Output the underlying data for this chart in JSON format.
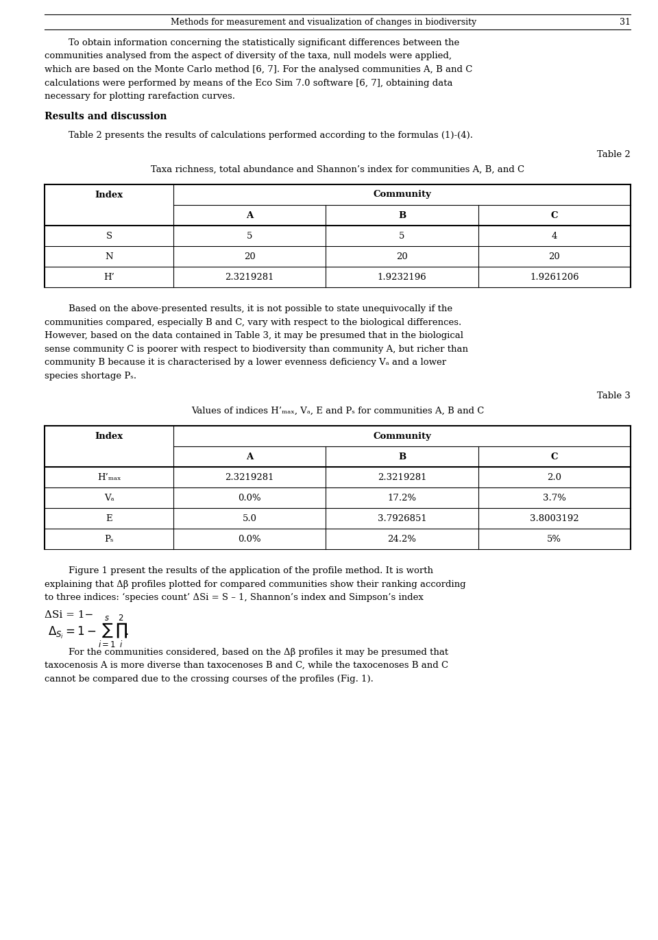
{
  "page_width": 9.6,
  "page_height": 13.71,
  "bg_color": "#ffffff",
  "header_text": "Methods for measurement and visualization of changes in biodiversity",
  "page_num": "31",
  "para1": "To obtain information concerning the statistically significant differences between the communities analysed from the aspect of diversity of the taxa, null models were applied, which are based on the Monte Carlo method [6, 7]. For the analysed communities A, B and C calculations were performed by means of the Eco Sim 7.0 software [6, 7], obtaining data necessary for plotting rarefaction curves.",
  "section_heading": "Results and discussion",
  "para2": "Table 2 presents the results of calculations performed according to the formulas (1)-(4).",
  "table2_label": "Table 2",
  "table2_caption": "Taxa richness, total abundance and Shannon’s index for communities A, B, and C",
  "table2_col_header": "Community",
  "table2_subcols": [
    "A",
    "B",
    "C"
  ],
  "table2_rows": [
    [
      "S",
      "5",
      "5",
      "4"
    ],
    [
      "N",
      "20",
      "20",
      "20"
    ],
    [
      "H’",
      "2.3219281",
      "1.9232196",
      "1.9261206"
    ]
  ],
  "para3": "Based on the above-presented results, it is not possible to state unequivocally if the communities compared, especially B and C, vary with respect to the biological differences. However, based on the data contained in Table 3, it may be presumed that in the biological sense community C is poorer with respect to biodiversity than community A, but richer than community B because it is characterised by a lower evenness deficiency Vₐ and a lower species shortage Pₛ.",
  "table3_label": "Table 3",
  "table3_caption": "Values of indices H’ₘₐₓ, Vₐ, E and Pₛ for communities A, B and C",
  "table3_col_header": "Community",
  "table3_subcols": [
    "A",
    "B",
    "C"
  ],
  "table3_rows": [
    [
      "H’ₘₐₓ",
      "2.3219281",
      "2.3219281",
      "2.0"
    ],
    [
      "Vₐ",
      "0.0%",
      "17.2%",
      "3.7%"
    ],
    [
      "E",
      "5.0",
      "3.7926851",
      "3.8003192"
    ],
    [
      "Pₛ",
      "0.0%",
      "24.2%",
      "5%"
    ]
  ],
  "para4": "Figure 1 present the results of the application of the profile method. It is worth explaining that Δβ profiles plotted for compared communities show their ranking according to three indices: ‘species count’ Δₛᴵ = S – 1, Shannon’s index and Simpson’s index",
  "formula": "Δₛᴵ = 1−∑∏ᴵ².",
  "para5": "For the communities considered, based on the Δβ profiles it may be presumed that taxocenosis A is more diverse than taxocenoses B and C, while the taxocenoses B and C cannot be compared due to the crossing courses of the profiles (Fig. 1)."
}
